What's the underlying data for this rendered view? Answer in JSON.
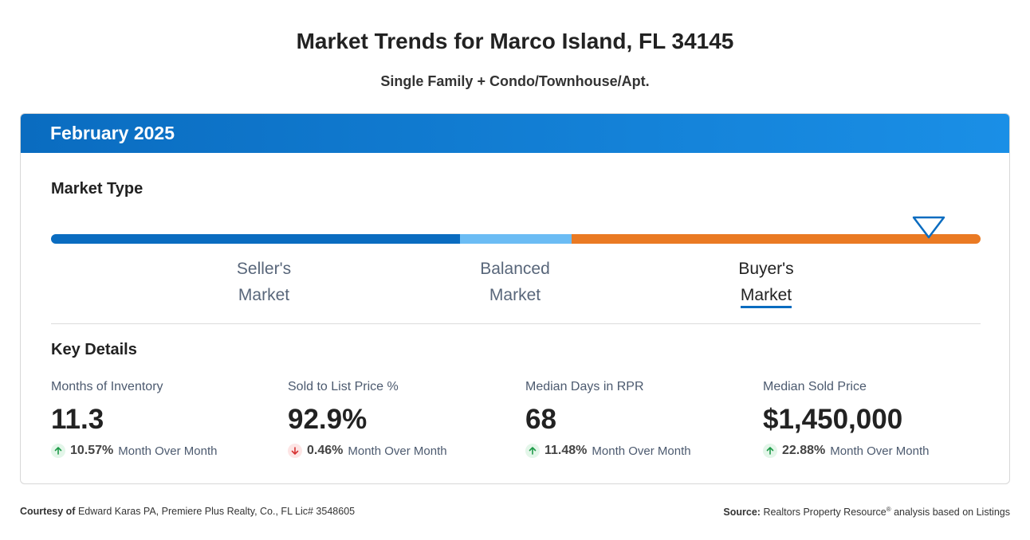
{
  "title": "Market Trends for Marco Island, FL 34145",
  "subtitle": "Single Family + Condo/Townhouse/Apt.",
  "card": {
    "period": "February 2025",
    "market_type_title": "Market Type",
    "market_labels": {
      "seller_line1": "Seller's",
      "seller_line2": "Market",
      "balanced_line1": "Balanced",
      "balanced_line2": "Market",
      "buyer_line1": "Buyer's",
      "buyer_line2": "Market"
    },
    "active_market": "Buyer's Market",
    "colors": {
      "seller": "#0a6cc0",
      "balanced": "#6bbcf4",
      "buyer": "#ea7a23",
      "up": "#1e9a48",
      "down": "#d63232"
    },
    "key_details_title": "Key Details",
    "stats": [
      {
        "label": "Months of Inventory",
        "value": "11.3",
        "direction": "up",
        "change": "10.57%",
        "change_label": "Month Over Month"
      },
      {
        "label": "Sold to List Price %",
        "value": "92.9%",
        "direction": "down",
        "change": "0.46%",
        "change_label": "Month Over Month"
      },
      {
        "label": "Median Days in RPR",
        "value": "68",
        "direction": "up",
        "change": "11.48%",
        "change_label": "Month Over Month"
      },
      {
        "label": "Median Sold Price",
        "value": "$1,450,000",
        "direction": "up",
        "change": "22.88%",
        "change_label": "Month Over Month"
      }
    ]
  },
  "footer": {
    "courtesy_label": "Courtesy of",
    "courtesy_text": "Edward Karas PA, Premiere Plus Realty, Co., FL Lic# 3548605",
    "source_label": "Source:",
    "source_text_a": "Realtors Property Resource",
    "source_reg": "®",
    "source_text_b": " analysis based on Listings"
  }
}
